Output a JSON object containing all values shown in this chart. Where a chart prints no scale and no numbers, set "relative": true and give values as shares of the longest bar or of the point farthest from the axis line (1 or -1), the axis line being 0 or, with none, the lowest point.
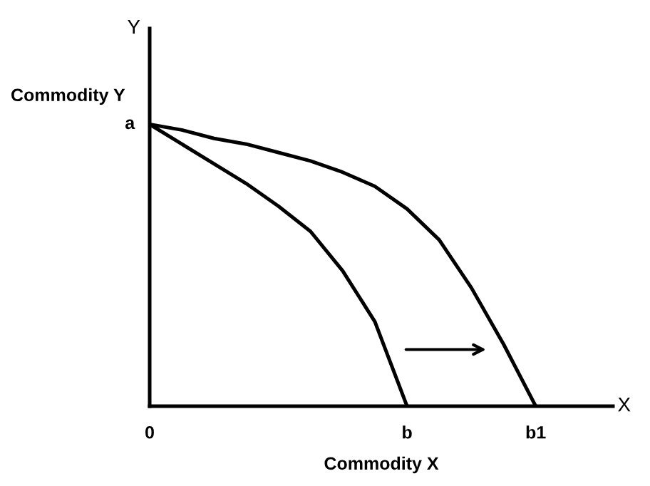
{
  "chart_data": {
    "type": "line",
    "xlabel": "Commodity X",
    "ylabel": "Commodity Y",
    "relative": true,
    "annotations": [
      "Y",
      "X",
      "a",
      "0",
      "b",
      "b1"
    ],
    "categories": [
      null,
      null,
      null,
      null,
      null,
      null,
      null,
      null,
      null,
      null,
      null,
      null,
      null
    ],
    "marker": "none",
    "line_style": "solid",
    "series": [
      {
        "color": "#000000",
        "values": [
          1,
          0.93,
          0.86,
          0.79,
          0.71,
          0.62,
          0.48,
          0.3,
          0,
          null,
          null,
          null,
          null
        ]
      },
      {
        "color": "#000000",
        "values": [
          1,
          0.98,
          0.95,
          0.93,
          0.9,
          0.87,
          0.83,
          0.78,
          0.7,
          0.59,
          0.42,
          0.22,
          0
        ]
      }
    ]
  }
}
